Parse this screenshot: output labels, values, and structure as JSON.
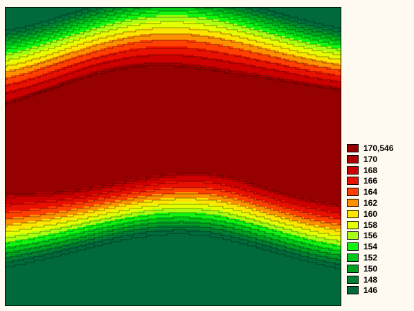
{
  "chart_data": {
    "type": "contour",
    "title": "",
    "xlabel": "",
    "ylabel": "",
    "grid": false,
    "legend_position": "right",
    "legend": [
      {
        "label": "170,546",
        "level": 170.546,
        "color": "#960000"
      },
      {
        "label": "170",
        "level": 170,
        "color": "#b00000"
      },
      {
        "label": "168",
        "level": 168,
        "color": "#cc0000"
      },
      {
        "label": "166",
        "level": 166,
        "color": "#e81000"
      },
      {
        "label": "164",
        "level": 164,
        "color": "#ff4000"
      },
      {
        "label": "162",
        "level": 162,
        "color": "#ff9000"
      },
      {
        "label": "160",
        "level": 160,
        "color": "#ffe400"
      },
      {
        "label": "158",
        "level": 158,
        "color": "#e4ff00"
      },
      {
        "label": "156",
        "level": 156,
        "color": "#a8ff10"
      },
      {
        "label": "154",
        "level": 154,
        "color": "#10f410"
      },
      {
        "label": "152",
        "level": 152,
        "color": "#00c818"
      },
      {
        "label": "150",
        "level": 150,
        "color": "#00a020"
      },
      {
        "label": "148",
        "level": 148,
        "color": "#008030"
      },
      {
        "label": "146",
        "level": 146,
        "color": "#006a3a"
      }
    ]
  }
}
